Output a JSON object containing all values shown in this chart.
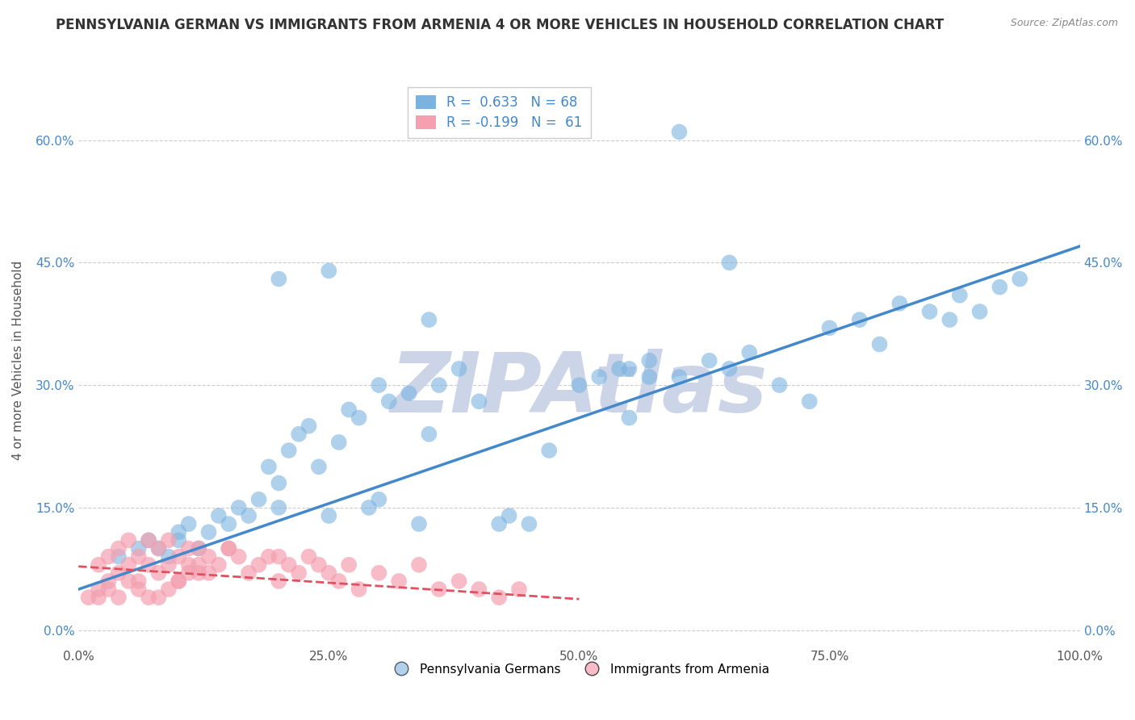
{
  "title": "PENNSYLVANIA GERMAN VS IMMIGRANTS FROM ARMENIA 4 OR MORE VEHICLES IN HOUSEHOLD CORRELATION CHART",
  "source": "Source: ZipAtlas.com",
  "ylabel": "4 or more Vehicles in Household",
  "watermark": "ZIPAtlas",
  "blue_color": "#7ab3e0",
  "pink_color": "#f4a0b0",
  "blue_line_color": "#4488cc",
  "pink_line_color": "#e05060",
  "legend_blue_label": "R =  0.633   N = 68",
  "legend_pink_label": "R = -0.199   N =  61",
  "xlim": [
    0,
    1.0
  ],
  "ylim": [
    -0.02,
    0.68
  ],
  "yticks": [
    0.0,
    0.15,
    0.3,
    0.45,
    0.6
  ],
  "ytick_labels": [
    "0.0%",
    "15.0%",
    "30.0%",
    "45.0%",
    "60.0%"
  ],
  "xticks": [
    0.0,
    0.25,
    0.5,
    0.75,
    1.0
  ],
  "xtick_labels": [
    "0.0%",
    "25.0%",
    "50.0%",
    "75.0%",
    "100.0%"
  ],
  "blue_x": [
    0.04,
    0.06,
    0.07,
    0.08,
    0.09,
    0.1,
    0.1,
    0.11,
    0.12,
    0.13,
    0.14,
    0.15,
    0.16,
    0.17,
    0.18,
    0.19,
    0.2,
    0.2,
    0.21,
    0.22,
    0.23,
    0.24,
    0.25,
    0.26,
    0.27,
    0.28,
    0.29,
    0.3,
    0.31,
    0.33,
    0.34,
    0.35,
    0.36,
    0.38,
    0.4,
    0.42,
    0.43,
    0.45,
    0.47,
    0.5,
    0.52,
    0.54,
    0.55,
    0.57,
    0.6,
    0.63,
    0.65,
    0.67,
    0.7,
    0.73,
    0.75,
    0.78,
    0.8,
    0.82,
    0.85,
    0.87,
    0.88,
    0.9,
    0.92,
    0.94,
    0.2,
    0.25,
    0.3,
    0.35,
    0.55,
    0.57,
    0.6,
    0.65
  ],
  "blue_y": [
    0.09,
    0.1,
    0.11,
    0.1,
    0.09,
    0.11,
    0.12,
    0.13,
    0.1,
    0.12,
    0.14,
    0.13,
    0.15,
    0.14,
    0.16,
    0.2,
    0.18,
    0.15,
    0.22,
    0.24,
    0.25,
    0.2,
    0.14,
    0.23,
    0.27,
    0.26,
    0.15,
    0.16,
    0.28,
    0.29,
    0.13,
    0.24,
    0.3,
    0.32,
    0.28,
    0.13,
    0.14,
    0.13,
    0.22,
    0.3,
    0.31,
    0.32,
    0.26,
    0.33,
    0.31,
    0.33,
    0.32,
    0.34,
    0.3,
    0.28,
    0.37,
    0.38,
    0.35,
    0.4,
    0.39,
    0.38,
    0.41,
    0.39,
    0.42,
    0.43,
    0.43,
    0.44,
    0.3,
    0.38,
    0.32,
    0.31,
    0.61,
    0.45
  ],
  "pink_x": [
    0.01,
    0.02,
    0.02,
    0.03,
    0.03,
    0.04,
    0.04,
    0.05,
    0.05,
    0.06,
    0.06,
    0.07,
    0.07,
    0.08,
    0.08,
    0.09,
    0.09,
    0.1,
    0.1,
    0.11,
    0.11,
    0.12,
    0.12,
    0.13,
    0.14,
    0.15,
    0.16,
    0.17,
    0.18,
    0.19,
    0.2,
    0.21,
    0.22,
    0.23,
    0.24,
    0.25,
    0.26,
    0.27,
    0.28,
    0.3,
    0.32,
    0.34,
    0.36,
    0.38,
    0.4,
    0.42,
    0.44,
    0.2,
    0.15,
    0.13,
    0.08,
    0.09,
    0.1,
    0.11,
    0.12,
    0.07,
    0.06,
    0.05,
    0.04,
    0.03,
    0.02
  ],
  "pink_y": [
    0.04,
    0.05,
    0.08,
    0.06,
    0.09,
    0.07,
    0.1,
    0.08,
    0.11,
    0.09,
    0.06,
    0.08,
    0.11,
    0.07,
    0.1,
    0.08,
    0.11,
    0.09,
    0.06,
    0.1,
    0.08,
    0.07,
    0.1,
    0.09,
    0.08,
    0.1,
    0.09,
    0.07,
    0.08,
    0.09,
    0.06,
    0.08,
    0.07,
    0.09,
    0.08,
    0.07,
    0.06,
    0.08,
    0.05,
    0.07,
    0.06,
    0.08,
    0.05,
    0.06,
    0.05,
    0.04,
    0.05,
    0.09,
    0.1,
    0.07,
    0.04,
    0.05,
    0.06,
    0.07,
    0.08,
    0.04,
    0.05,
    0.06,
    0.04,
    0.05,
    0.04
  ],
  "blue_trend_x": [
    0.0,
    1.0
  ],
  "blue_trend_y": [
    0.05,
    0.47
  ],
  "pink_trend_x": [
    0.0,
    0.5
  ],
  "pink_trend_y": [
    0.078,
    0.038
  ],
  "background_color": "#ffffff",
  "grid_color": "#cccccc",
  "title_color": "#333333",
  "watermark_color": "#ccd5e8",
  "legend_text_color": "#4488cc",
  "axis_label_color": "#555555",
  "legend_bottom_label1": "Pennsylvania Germans",
  "legend_bottom_label2": "Immigrants from Armenia"
}
